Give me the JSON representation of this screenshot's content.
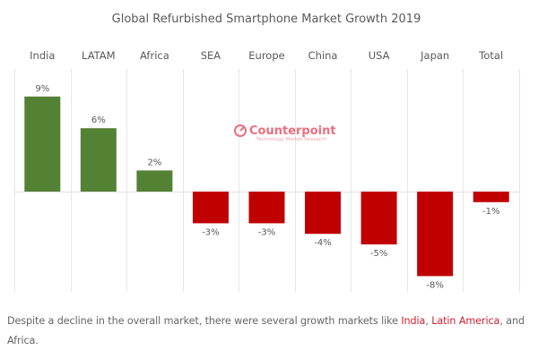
{
  "chart_data": {
    "type": "bar",
    "title": "Global Refurbished Smartphone Market Growth 2019",
    "categories": [
      "India",
      "LATAM",
      "Africa",
      "SEA",
      "Europe",
      "China",
      "USA",
      "Japan",
      "Total"
    ],
    "values": [
      9,
      6,
      2,
      -3,
      -3,
      -4,
      -5,
      -8,
      -1
    ],
    "data_labels": [
      "9%",
      "6%",
      "2%",
      "-3%",
      "-3%",
      "-4%",
      "-5%",
      "-8%",
      "-1%"
    ],
    "xlabel": "",
    "ylabel": "",
    "ylim": [
      -9.5,
      9.5
    ],
    "category_axis_position": "top",
    "grid": "vertical category separators",
    "legend": "none",
    "colors": {
      "positive": "#548235",
      "negative": "#c00000"
    }
  },
  "watermark": {
    "brand": "Counterpoint",
    "tagline": "Technology Market Research",
    "color": "#ec6f7f"
  },
  "caption": {
    "text_before": "Despite a decline in the overall market, there were several growth markets like ",
    "link_india": "India",
    "separator": ", ",
    "link_latam": "Latin America",
    "text_after": ", and Africa.",
    "link_color": "#d11f2f"
  }
}
